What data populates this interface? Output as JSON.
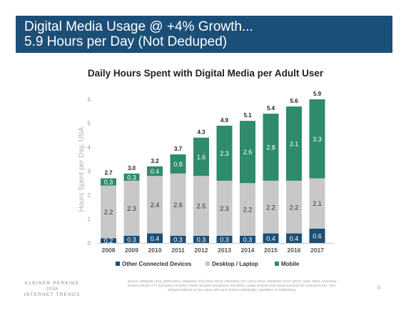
{
  "header": {
    "title_line1": "Digital Media Usage @ +4% Growth...",
    "title_line2": "5.9 Hours per Day (Not Deduped)"
  },
  "colors": {
    "banner": "#1b4f78",
    "other": "#1b4f78",
    "desktop": "#c8c8c8",
    "mobile": "#2e8b6e"
  },
  "chart_data": {
    "type": "bar",
    "stacked": true,
    "title": "Daily Hours Spent with Digital Media per Adult User",
    "xlabel": "",
    "ylabel": "Hours Spent per Day, USA",
    "ylim": [
      0,
      6
    ],
    "yticks": [
      0,
      1,
      2,
      3,
      4,
      5,
      6
    ],
    "grid": false,
    "legend_position": "bottom",
    "categories": [
      "2008",
      "2009",
      "2010",
      "2011",
      "2012",
      "2013",
      "2014",
      "2015",
      "2016",
      "2017"
    ],
    "series": [
      {
        "name": "Other Connected Devices",
        "values": [
          0.2,
          0.3,
          0.4,
          0.3,
          0.3,
          0.3,
          0.3,
          0.4,
          0.4,
          0.6
        ]
      },
      {
        "name": "Desktop / Laptop",
        "values": [
          2.2,
          2.3,
          2.4,
          2.6,
          2.5,
          2.3,
          2.2,
          2.2,
          2.2,
          2.1
        ]
      },
      {
        "name": "Mobile",
        "values": [
          0.3,
          0.3,
          0.4,
          0.8,
          1.6,
          2.3,
          2.6,
          2.8,
          3.1,
          3.3
        ]
      }
    ],
    "totals": [
      "2.7",
      "3.0",
      "3.2",
      "3.7",
      "4.3",
      "4.9",
      "5.1",
      "5.4",
      "5.6",
      "5.9"
    ]
  },
  "footer": {
    "logo_line1": "KLEINER PERKINS",
    "logo_line2": "2018",
    "logo_line3": "INTERNET TRENDS",
    "source": "Source: eMarketer 9/14 (2008-2010), eMarketer 4/15 (2011-2013), eMarketer 4/17 (2014-2016), eMarketer 10/17 (2017). Note: Other connected devices include OTT and game consoles. Mobile includes smartphone and tablet. Usage includes both home and work for consumers 18+. Non-deduped defined as time spent with each medium individually, regardless of multitasking.",
    "page_number": "11"
  }
}
